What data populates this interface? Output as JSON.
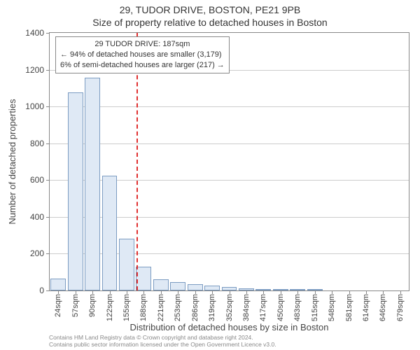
{
  "header": {
    "line1": "29, TUDOR DRIVE, BOSTON, PE21 9PB",
    "line2": "Size of property relative to detached houses in Boston"
  },
  "axes": {
    "x_label": "Distribution of detached houses by size in Boston",
    "y_label": "Number of detached properties",
    "y_ticks": [
      0,
      200,
      400,
      600,
      800,
      1000,
      1200,
      1400
    ],
    "y_max": 1400,
    "x_categories": [
      "24sqm",
      "57sqm",
      "90sqm",
      "122sqm",
      "155sqm",
      "188sqm",
      "221sqm",
      "253sqm",
      "286sqm",
      "319sqm",
      "352sqm",
      "384sqm",
      "417sqm",
      "450sqm",
      "483sqm",
      "515sqm",
      "548sqm",
      "581sqm",
      "614sqm",
      "646sqm",
      "679sqm"
    ]
  },
  "styling": {
    "bar_fill": "#dfe9f5",
    "bar_border": "#7c9cc2",
    "grid_color": "#cccccc",
    "border_color": "#888888",
    "marker_color": "#e03030",
    "text_color": "#444444",
    "background": "#ffffff",
    "title_fontsize": 14,
    "tick_fontsize": 12,
    "xtick_fontsize": 11,
    "axis_label_fontsize": 13,
    "anno_fontsize": 11
  },
  "chart": {
    "type": "histogram",
    "bar_gap_ratio": 0.1,
    "bars": [
      65,
      1075,
      1155,
      625,
      280,
      130,
      60,
      45,
      35,
      25,
      18,
      10,
      4,
      3,
      2,
      2,
      1,
      1,
      1,
      0,
      1
    ],
    "marker": {
      "at_category_index": 5,
      "fractional_offset": 0.03
    }
  },
  "annotation": {
    "line1": "29 TUDOR DRIVE: 187sqm",
    "line2": "← 94% of detached houses are smaller (3,179)",
    "line3": "6% of semi-detached houses are larger (217) →"
  },
  "footer": {
    "line1": "Contains HM Land Registry data © Crown copyright and database right 2024.",
    "line2": "Contains public sector information licensed under the Open Government Licence v3.0."
  }
}
